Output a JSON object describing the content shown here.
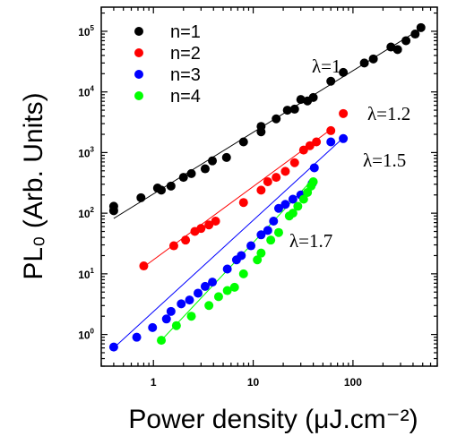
{
  "chart_data": {
    "type": "scatter",
    "xlabel": "Power density (μJ.cm⁻²)",
    "ylabel": "PL₀ (Arb. Units)",
    "x_scale": "log",
    "y_scale": "log",
    "xlim": [
      0.3,
      700
    ],
    "ylim": [
      0.3,
      250000
    ],
    "x_tick_labels": [
      {
        "value": 1,
        "label": "1"
      },
      {
        "value": 10,
        "label": "10"
      },
      {
        "value": 100,
        "label": "100"
      }
    ],
    "y_tick_labels": [
      {
        "value": 1,
        "base": "10",
        "exp": "0"
      },
      {
        "value": 10,
        "base": "10",
        "exp": "1"
      },
      {
        "value": 100,
        "base": "10",
        "exp": "2"
      },
      {
        "value": 1000,
        "base": "10",
        "exp": "3"
      },
      {
        "value": 10000,
        "base": "10",
        "exp": "4"
      },
      {
        "value": 100000,
        "base": "10",
        "exp": "5"
      }
    ],
    "grid": false,
    "legend_position": "top-left",
    "series": [
      {
        "name": "n=1",
        "color": "#000000",
        "annotation": "λ=1",
        "fit": {
          "x": [
            0.4,
            500
          ],
          "y": [
            82,
            115000
          ]
        },
        "points": [
          [
            0.4,
            130
          ],
          [
            0.4,
            110
          ],
          [
            0.75,
            180
          ],
          [
            1.1,
            260
          ],
          [
            1.2,
            240
          ],
          [
            1.5,
            280
          ],
          [
            2.0,
            390
          ],
          [
            2.4,
            450
          ],
          [
            3.3,
            540
          ],
          [
            3.9,
            730
          ],
          [
            5.4,
            830
          ],
          [
            8,
            1500
          ],
          [
            12,
            2700
          ],
          [
            12,
            2200
          ],
          [
            17,
            3600
          ],
          [
            22,
            5000
          ],
          [
            26,
            5200
          ],
          [
            30,
            7500
          ],
          [
            35,
            7100
          ],
          [
            40,
            8100
          ],
          [
            60,
            15000
          ],
          [
            80,
            21000
          ],
          [
            130,
            30000
          ],
          [
            160,
            35000
          ],
          [
            240,
            55000
          ],
          [
            280,
            50000
          ],
          [
            340,
            70000
          ],
          [
            420,
            90000
          ],
          [
            480,
            115000
          ]
        ]
      },
      {
        "name": "n=2",
        "color": "#ff0000",
        "annotation": "λ=1.2",
        "fit": {
          "x": [
            0.8,
            60
          ],
          "y": [
            13,
            2400
          ]
        },
        "points": [
          [
            0.8,
            13.5
          ],
          [
            1.6,
            29
          ],
          [
            2.1,
            36
          ],
          [
            2.6,
            50
          ],
          [
            3.0,
            56
          ],
          [
            3.6,
            64
          ],
          [
            4.2,
            74
          ],
          [
            8,
            150
          ],
          [
            12,
            240
          ],
          [
            14,
            330
          ],
          [
            17,
            390
          ],
          [
            21,
            490
          ],
          [
            26,
            680
          ],
          [
            32,
            1100
          ],
          [
            37,
            1300
          ],
          [
            43,
            1500
          ],
          [
            60,
            2300
          ],
          [
            80,
            4400
          ]
        ]
      },
      {
        "name": "n=3",
        "color": "#0000ff",
        "annotation": "λ=1.5",
        "fit": {
          "x": [
            0.4,
            80
          ],
          "y": [
            0.6,
            1750
          ]
        },
        "points": [
          [
            0.4,
            0.62
          ],
          [
            0.68,
            0.9
          ],
          [
            0.98,
            1.3
          ],
          [
            1.35,
            1.8
          ],
          [
            1.5,
            2.4
          ],
          [
            1.9,
            3.2
          ],
          [
            2.3,
            3.7
          ],
          [
            2.8,
            4.8
          ],
          [
            3.3,
            6.2
          ],
          [
            3.9,
            7.3
          ],
          [
            5.5,
            12
          ],
          [
            6.8,
            17
          ],
          [
            7.6,
            20
          ],
          [
            9.5,
            29
          ],
          [
            12,
            44
          ],
          [
            14,
            52
          ],
          [
            16,
            74
          ],
          [
            18,
            120
          ],
          [
            21,
            140
          ],
          [
            25,
            170
          ],
          [
            30,
            200
          ],
          [
            39,
            310
          ],
          [
            41,
            560
          ],
          [
            60,
            1500
          ],
          [
            80,
            1700
          ]
        ]
      },
      {
        "name": "n=4",
        "color": "#00ff00",
        "annotation": "λ=1.7",
        "fit": {
          "x": [
            1.2,
            40
          ],
          "y": [
            0.8,
            370
          ]
        },
        "points": [
          [
            1.2,
            0.8
          ],
          [
            1.7,
            1.4
          ],
          [
            2.4,
            2.0
          ],
          [
            3.6,
            3.0
          ],
          [
            4.5,
            4.2
          ],
          [
            5.5,
            5.3
          ],
          [
            6.5,
            6.0
          ],
          [
            8,
            10
          ],
          [
            11,
            17
          ],
          [
            12,
            22
          ],
          [
            15,
            36
          ],
          [
            18,
            48
          ],
          [
            23,
            90
          ],
          [
            25,
            100
          ],
          [
            28,
            130
          ],
          [
            32,
            170
          ],
          [
            35,
            220
          ],
          [
            38,
            280
          ],
          [
            40,
            330
          ]
        ]
      }
    ]
  }
}
